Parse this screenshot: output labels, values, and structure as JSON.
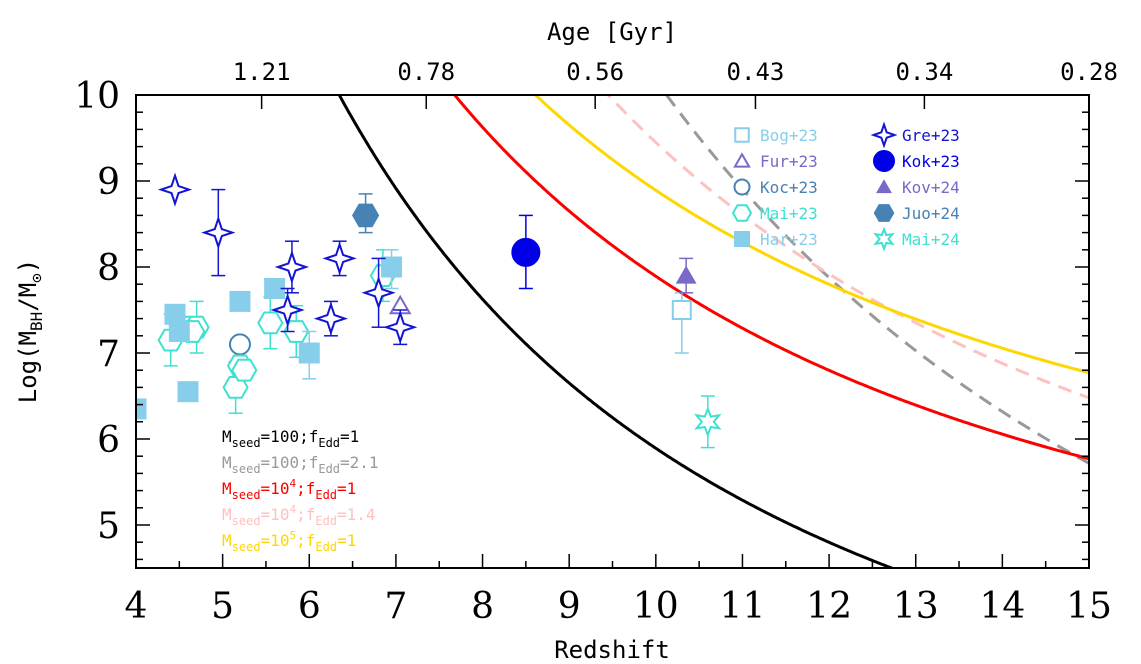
{
  "chart_data": {
    "type": "scatter",
    "xlabel": "Redshift",
    "ylabel": "Log(M_BH/M_⊙)",
    "ylabel_parts": {
      "pre": "Log(M",
      "sub1": "BH",
      "mid": "/M",
      "sub2": "⊙",
      "post": ")"
    },
    "top_xlabel": "Age [Gyr]",
    "xlim": [
      4,
      15
    ],
    "ylim": [
      4.5,
      10
    ],
    "x_ticks": [
      "4",
      "5",
      "6",
      "7",
      "8",
      "9",
      "10",
      "11",
      "12",
      "13",
      "14",
      "15"
    ],
    "y_ticks": [
      "5",
      "6",
      "7",
      "8",
      "9",
      "10"
    ],
    "top_ticks": [
      {
        "z": 5.45,
        "label": "1.21"
      },
      {
        "z": 7.35,
        "label": "0.78"
      },
      {
        "z": 9.3,
        "label": "0.56"
      },
      {
        "z": 11.15,
        "label": "0.43"
      },
      {
        "z": 13.1,
        "label": "0.34"
      },
      {
        "z": 15.0,
        "label": "0.28"
      }
    ],
    "legend_position": "top-right",
    "series": [
      {
        "name": "Bog+23",
        "marker": "open-square",
        "color": "#87ceeb",
        "points": [
          {
            "x": 10.3,
            "y": 7.5,
            "ylo": 7.0,
            "yhi": 7.7
          }
        ]
      },
      {
        "name": "Fur+23",
        "marker": "open-triangle",
        "color": "#7b68c8",
        "points": [
          {
            "x": 7.05,
            "y": 7.55
          }
        ]
      },
      {
        "name": "Koc+23",
        "marker": "open-circle",
        "color": "#4682b4",
        "points": [
          {
            "x": 5.2,
            "y": 7.1
          }
        ]
      },
      {
        "name": "Mai+23",
        "marker": "open-hexagon",
        "color": "#40e0d0",
        "points": [
          {
            "x": 4.4,
            "y": 7.15,
            "ylo": 6.85,
            "yhi": 7.45
          },
          {
            "x": 4.55,
            "y": 7.3
          },
          {
            "x": 4.7,
            "y": 7.3,
            "ylo": 7.0,
            "yhi": 7.6
          },
          {
            "x": 4.65,
            "y": 7.25
          },
          {
            "x": 5.15,
            "y": 6.6,
            "ylo": 6.3,
            "yhi": 6.9
          },
          {
            "x": 5.2,
            "y": 6.85
          },
          {
            "x": 5.25,
            "y": 6.8
          },
          {
            "x": 5.55,
            "y": 7.35,
            "ylo": 7.05,
            "yhi": 7.65
          },
          {
            "x": 5.85,
            "y": 7.25,
            "ylo": 6.95,
            "yhi": 7.55
          },
          {
            "x": 6.85,
            "y": 7.9,
            "ylo": 7.6,
            "yhi": 8.2
          }
        ]
      },
      {
        "name": "Har+23",
        "marker": "filled-square",
        "color": "#87ceeb",
        "points": [
          {
            "x": 4.0,
            "y": 6.35
          },
          {
            "x": 4.45,
            "y": 7.45
          },
          {
            "x": 4.5,
            "y": 7.25
          },
          {
            "x": 4.6,
            "y": 6.55
          },
          {
            "x": 5.2,
            "y": 7.6
          },
          {
            "x": 5.6,
            "y": 7.75
          },
          {
            "x": 6.0,
            "y": 7.0,
            "ylo": 6.7,
            "yhi": 7.25
          },
          {
            "x": 6.95,
            "y": 8.0,
            "ylo": 7.75,
            "yhi": 8.2
          }
        ]
      },
      {
        "name": "Gre+23",
        "marker": "open-star4",
        "color": "#1414d4",
        "points": [
          {
            "x": 4.45,
            "y": 8.9
          },
          {
            "x": 4.95,
            "y": 8.4,
            "ylo": 7.9,
            "yhi": 8.9
          },
          {
            "x": 5.8,
            "y": 8.0,
            "ylo": 7.7,
            "yhi": 8.3
          },
          {
            "x": 5.75,
            "y": 7.5,
            "ylo": 7.25,
            "yhi": 7.75
          },
          {
            "x": 6.25,
            "y": 7.4,
            "ylo": 7.2,
            "yhi": 7.6
          },
          {
            "x": 6.35,
            "y": 8.1,
            "ylo": 7.9,
            "yhi": 8.3
          },
          {
            "x": 6.8,
            "y": 7.7,
            "ylo": 7.3,
            "yhi": 8.1
          },
          {
            "x": 7.05,
            "y": 7.3,
            "ylo": 7.1,
            "yhi": 7.5
          }
        ]
      },
      {
        "name": "Kok+23",
        "marker": "filled-circle",
        "color": "#0000e6",
        "points": [
          {
            "x": 8.5,
            "y": 8.17,
            "ylo": 7.75,
            "yhi": 8.6
          }
        ]
      },
      {
        "name": "Kov+24",
        "marker": "filled-triangle",
        "color": "#7b68c8",
        "points": [
          {
            "x": 10.35,
            "y": 7.9,
            "ylo": 7.7,
            "yhi": 8.1
          }
        ]
      },
      {
        "name": "Juo+24",
        "marker": "filled-hexagon",
        "color": "#4682b4",
        "points": [
          {
            "x": 6.65,
            "y": 8.6,
            "ylo": 8.4,
            "yhi": 8.85
          }
        ]
      },
      {
        "name": "Mai+24",
        "marker": "open-star6",
        "color": "#40e0d0",
        "points": [
          {
            "x": 10.6,
            "y": 6.2,
            "ylo": 5.9,
            "yhi": 6.5
          }
        ]
      }
    ],
    "models": [
      {
        "label_pre": "M",
        "label_sub1": "seed",
        "label_mid": "=100;f",
        "label_sub2": "Edd",
        "label_post": "=1",
        "color": "#000000",
        "dash": false,
        "seed_log": 2,
        "fedd": 1.0
      },
      {
        "label_pre": "M",
        "label_sub1": "seed",
        "label_mid": "=100;f",
        "label_sub2": "Edd",
        "label_post": "=2.1",
        "color": "#999999",
        "dash": true,
        "seed_log": 2,
        "fedd": 2.1
      },
      {
        "label_pre": "M",
        "label_sub1": "seed",
        "label_mid": "=10",
        "label_sup": "4",
        "label_mid2": ";f",
        "label_sub2": "Edd",
        "label_post": "=1",
        "color": "#ff0000",
        "dash": false,
        "seed_log": 4,
        "fedd": 1.0
      },
      {
        "label_pre": "M",
        "label_sub1": "seed",
        "label_mid": "=10",
        "label_sup": "4",
        "label_mid2": ";f",
        "label_sub2": "Edd",
        "label_post": "=1.4",
        "color": "#ffc0c0",
        "dash": true,
        "seed_log": 4,
        "fedd": 1.4
      },
      {
        "label_pre": "M",
        "label_sub1": "seed",
        "label_mid": "=10",
        "label_sup": "5",
        "label_mid2": ";f",
        "label_sub2": "Edd",
        "label_post": "=1",
        "color": "#ffd700",
        "dash": false,
        "seed_log": 5,
        "fedd": 1.0
      }
    ]
  }
}
